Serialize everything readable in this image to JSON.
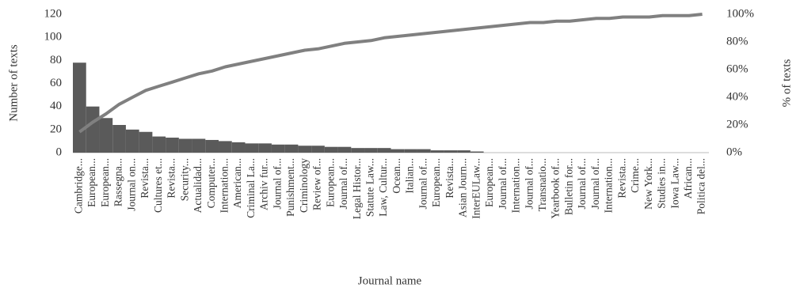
{
  "chart_data": {
    "type": "pareto",
    "x_label": "Journal name",
    "y_label": "Number of texts",
    "y2_label": "% of texts",
    "categories": [
      "Cambridge...",
      "European...",
      "European...",
      "Rassegna...",
      "Journal on...",
      "Revista...",
      "Cultures et...",
      "Revista...",
      "Security...",
      "Actualidad...",
      "Computer...",
      "Internation...",
      "American...",
      "Criminal La...",
      "Archiv fur...",
      "Journal of...",
      "Punishment...",
      "Criminology",
      "Review of...",
      "European...",
      "Journal of...",
      "Legal Histor...",
      "Statute Law...",
      "Law, Cultur...",
      "Ocean...",
      "Italian...",
      "Journal of...",
      "European...",
      "Revista...",
      "Asian Journ...",
      "InterEULaw...",
      "European...",
      "Journal of...",
      "Internation...",
      "Journal of...",
      "Transnatio...",
      "Yearbook of...",
      "Bulletin for...",
      "Journal of...",
      "Journal of...",
      "Internation...",
      "Revista...",
      "Crime...",
      "New York...",
      "Studies in...",
      "Iowa Law...",
      "African...",
      "Politica del..."
    ],
    "series": [
      {
        "name": "Number of texts",
        "color": "#5a5a5a",
        "values": [
          78,
          40,
          30,
          24,
          20,
          18,
          14,
          13,
          12,
          12,
          11,
          10,
          9,
          8,
          8,
          7,
          7,
          6,
          6,
          5,
          5,
          4,
          4,
          4,
          3,
          3,
          3,
          2,
          2,
          2,
          1,
          0,
          0,
          0,
          0,
          0,
          0,
          0,
          0,
          0,
          0,
          0,
          0,
          0,
          0,
          0,
          0,
          0
        ]
      },
      {
        "name": "% of texts",
        "color": "#808080",
        "axis": "y2",
        "values": [
          15,
          22,
          28,
          35,
          40,
          45,
          48,
          51,
          54,
          57,
          59,
          62,
          64,
          66,
          68,
          70,
          72,
          74,
          75,
          77,
          79,
          80,
          81,
          83,
          84,
          85,
          86,
          87,
          88,
          89,
          90,
          91,
          92,
          93,
          94,
          94,
          95,
          95,
          96,
          97,
          97,
          98,
          98,
          98,
          99,
          99,
          99,
          100
        ]
      }
    ],
    "ylim": [
      0,
      120
    ],
    "yticks": [
      0,
      20,
      40,
      60,
      80,
      100,
      120
    ],
    "y2lim": [
      0,
      100
    ],
    "y2ticks": [
      {
        "value": 0,
        "label": "0%"
      },
      {
        "value": 20,
        "label": "20%"
      },
      {
        "value": 40,
        "label": "40%"
      },
      {
        "value": 60,
        "label": "60%"
      },
      {
        "value": 80,
        "label": "80%"
      },
      {
        "value": 100,
        "label": "100%"
      }
    ]
  }
}
